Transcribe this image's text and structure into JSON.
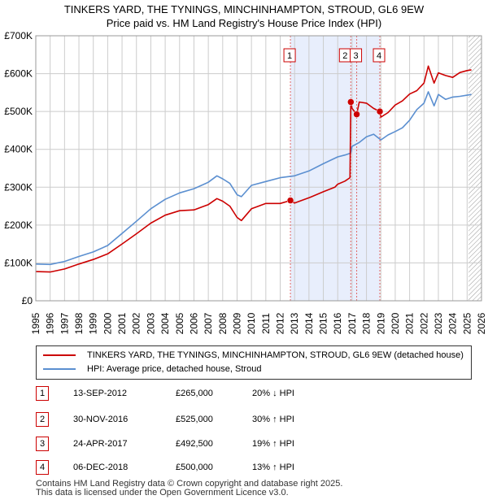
{
  "title_line1": "TINKERS YARD, THE TYNINGS, MINCHINHAMPTON, STROUD, GL6 9EW",
  "title_line2": "Price paid vs. HM Land Registry's House Price Index (HPI)",
  "chart_data": {
    "type": "line",
    "xlim": [
      1995,
      2026
    ],
    "ylim": [
      0,
      700000
    ],
    "x_ticks": [
      1995,
      1996,
      1997,
      1998,
      1999,
      2000,
      2001,
      2002,
      2003,
      2004,
      2005,
      2006,
      2007,
      2008,
      2009,
      2010,
      2011,
      2012,
      2013,
      2014,
      2015,
      2016,
      2017,
      2018,
      2019,
      2020,
      2021,
      2022,
      2023,
      2024,
      2025,
      2026
    ],
    "y_ticks": [
      {
        "value": 0,
        "label": "£0"
      },
      {
        "value": 100000,
        "label": "£100K"
      },
      {
        "value": 200000,
        "label": "£200K"
      },
      {
        "value": 300000,
        "label": "£300K"
      },
      {
        "value": 400000,
        "label": "£400K"
      },
      {
        "value": 500000,
        "label": "£500K"
      },
      {
        "value": 600000,
        "label": "£600K"
      },
      {
        "value": 700000,
        "label": "£700K"
      }
    ],
    "grid": true,
    "shaded_region": [
      2012.71,
      2018.93
    ],
    "future_hatch_from": 2025.1,
    "series": [
      {
        "name": "TINKERS YARD, THE TYNINGS, MINCHINHAMPTON, STROUD, GL6 9EW (detached house)",
        "color": "#cc0000",
        "x": [
          1995,
          1996,
          1997,
          1998,
          1999,
          2000,
          2001,
          2002,
          2003,
          2004,
          2005,
          2006,
          2007,
          2007.6,
          2008,
          2008.5,
          2009,
          2009.3,
          2010,
          2011,
          2012,
          2012.71,
          2013,
          2014,
          2015,
          2015.8,
          2016,
          2016.5,
          2016.85,
          2016.91,
          2017,
          2017.32,
          2017.5,
          2018,
          2018.5,
          2018.93,
          2019,
          2019.5,
          2020,
          2020.5,
          2021,
          2021.5,
          2022,
          2022.3,
          2022.7,
          2023,
          2023.5,
          2024,
          2024.5,
          2025,
          2025.3
        ],
        "values": [
          77000,
          76000,
          84000,
          97000,
          109000,
          124000,
          150000,
          177000,
          205000,
          226000,
          238000,
          240000,
          254000,
          270000,
          263000,
          250000,
          220000,
          212000,
          243000,
          257000,
          257000,
          265000,
          258000,
          272000,
          288000,
          300000,
          308000,
          316000,
          325000,
          525000,
          508000,
          492500,
          525000,
          522000,
          508000,
          500000,
          485000,
          497000,
          517000,
          528000,
          546000,
          555000,
          575000,
          620000,
          575000,
          602000,
          595000,
          590000,
          603000,
          608000,
          610000
        ]
      },
      {
        "name": "HPI: Average price, detached house, Stroud",
        "color": "#5b8fd0",
        "x": [
          1995,
          1996,
          1997,
          1998,
          1999,
          2000,
          2001,
          2002,
          2003,
          2004,
          2005,
          2006,
          2007,
          2007.6,
          2008,
          2008.5,
          2009,
          2009.3,
          2010,
          2011,
          2012,
          2013,
          2014,
          2015,
          2016,
          2016.5,
          2016.9,
          2017,
          2017.5,
          2018,
          2018.5,
          2019,
          2019.5,
          2020,
          2020.5,
          2021,
          2021.5,
          2022,
          2022.3,
          2022.7,
          2023,
          2023.5,
          2024,
          2024.5,
          2025,
          2025.3
        ],
        "values": [
          97000,
          96000,
          104000,
          117000,
          129000,
          146000,
          178000,
          210000,
          243000,
          268000,
          285000,
          296000,
          313000,
          330000,
          322000,
          310000,
          280000,
          275000,
          305000,
          315000,
          325000,
          330000,
          343000,
          362000,
          380000,
          385000,
          390000,
          408000,
          418000,
          433000,
          440000,
          425000,
          438000,
          447000,
          457000,
          477000,
          505000,
          522000,
          552000,
          515000,
          545000,
          532000,
          538000,
          540000,
          543000,
          545000
        ]
      }
    ],
    "annotations": [
      {
        "label": "1",
        "x": 2012.71,
        "value": 265000
      },
      {
        "label": "2",
        "x": 2016.91,
        "value": 525000
      },
      {
        "label": "3",
        "x": 2017.32,
        "value": 492500
      },
      {
        "label": "4",
        "x": 2018.93,
        "value": 500000
      }
    ]
  },
  "legend": {
    "property_label": "TINKERS YARD, THE TYNINGS, MINCHINHAMPTON, STROUD, GL6 9EW (detached house)",
    "hpi_label": "HPI: Average price, detached house, Stroud"
  },
  "transactions": [
    {
      "num": "1",
      "date": "13-SEP-2012",
      "price": "£265,000",
      "hpi": "20% ↓ HPI"
    },
    {
      "num": "2",
      "date": "30-NOV-2016",
      "price": "£525,000",
      "hpi": "30% ↑ HPI"
    },
    {
      "num": "3",
      "date": "24-APR-2017",
      "price": "£492,500",
      "hpi": "19% ↑ HPI"
    },
    {
      "num": "4",
      "date": "06-DEC-2018",
      "price": "£500,000",
      "hpi": "13% ↑ HPI"
    }
  ],
  "footer": {
    "line1": "Contains HM Land Registry data © Crown copyright and database right 2025.",
    "line2": "This data is licensed under the Open Government Licence v3.0."
  },
  "colors": {
    "property": "#cc0000",
    "hpi": "#5b8fd0",
    "shade": "#e8eefc",
    "grid": "#cccccc"
  }
}
